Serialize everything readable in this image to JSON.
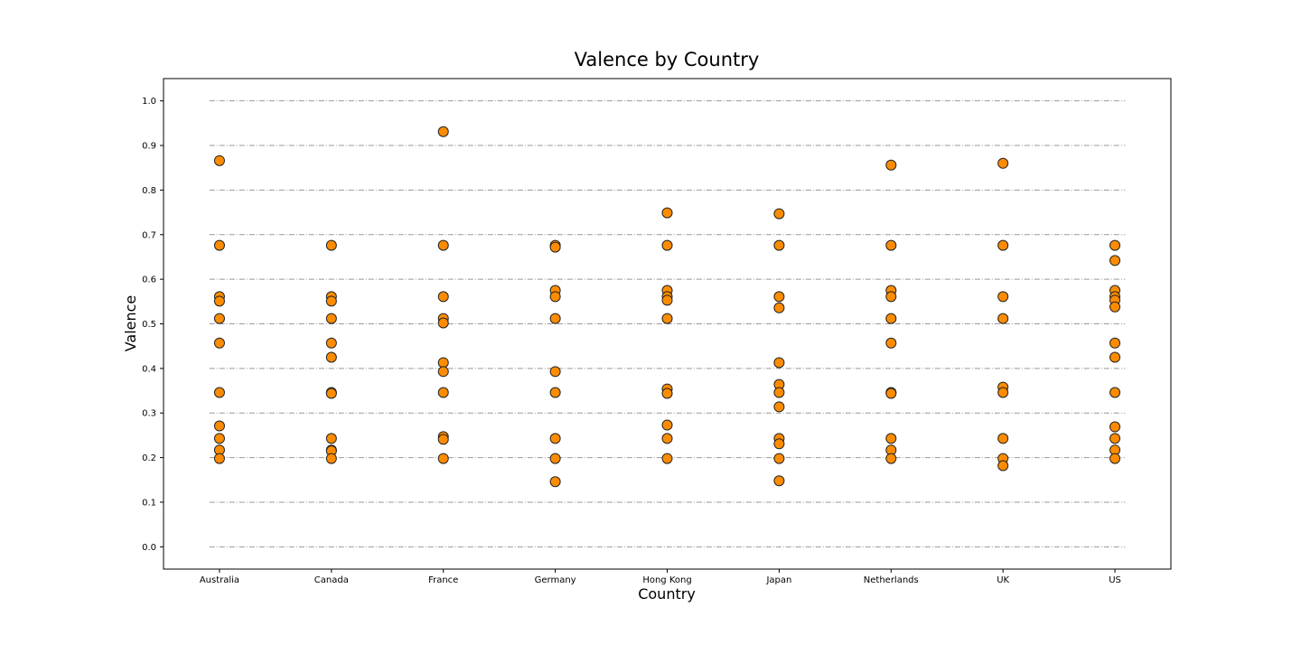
{
  "chart_data": {
    "type": "scatter",
    "title": "Valence by Country",
    "x_label": "Country",
    "y_label": "Valence",
    "categories": [
      "Australia",
      "Canada",
      "France",
      "Germany",
      "Hong Kong",
      "Japan",
      "Netherlands",
      "UK",
      "US"
    ],
    "values": [
      [
        0.866,
        0.676,
        0.561,
        0.551,
        0.512,
        0.457,
        0.346,
        0.271,
        0.243,
        0.217,
        0.198
      ],
      [
        0.676,
        0.561,
        0.551,
        0.512,
        0.457,
        0.425,
        0.346,
        0.344,
        0.243,
        0.217,
        0.215,
        0.198
      ],
      [
        0.931,
        0.676,
        0.561,
        0.512,
        0.502,
        0.413,
        0.393,
        0.346,
        0.247,
        0.241,
        0.198
      ],
      [
        0.676,
        0.672,
        0.575,
        0.561,
        0.512,
        0.393,
        0.346,
        0.243,
        0.198,
        0.146
      ],
      [
        0.749,
        0.676,
        0.575,
        0.561,
        0.553,
        0.512,
        0.354,
        0.344,
        0.273,
        0.243,
        0.198
      ],
      [
        0.747,
        0.676,
        0.561,
        0.536,
        0.413,
        0.364,
        0.346,
        0.314,
        0.243,
        0.231,
        0.198,
        0.148
      ],
      [
        0.856,
        0.676,
        0.575,
        0.561,
        0.512,
        0.457,
        0.346,
        0.344,
        0.243,
        0.217,
        0.198
      ],
      [
        0.86,
        0.676,
        0.561,
        0.512,
        0.358,
        0.346,
        0.243,
        0.198,
        0.182
      ],
      [
        0.676,
        0.642,
        0.575,
        0.561,
        0.553,
        0.538,
        0.457,
        0.425,
        0.346,
        0.269,
        0.243,
        0.217,
        0.198
      ]
    ],
    "color": "#ff8c00",
    "ylim": [
      -0.05,
      1.05
    ],
    "yticks": [
      {
        "value": 0,
        "label": "0.0"
      },
      0.1,
      0.2,
      0.3,
      0.4,
      0.5,
      0.6,
      0.7,
      0.8,
      0.9,
      {
        "value": 1,
        "label": "1.0"
      }
    ],
    "grid": true
  }
}
